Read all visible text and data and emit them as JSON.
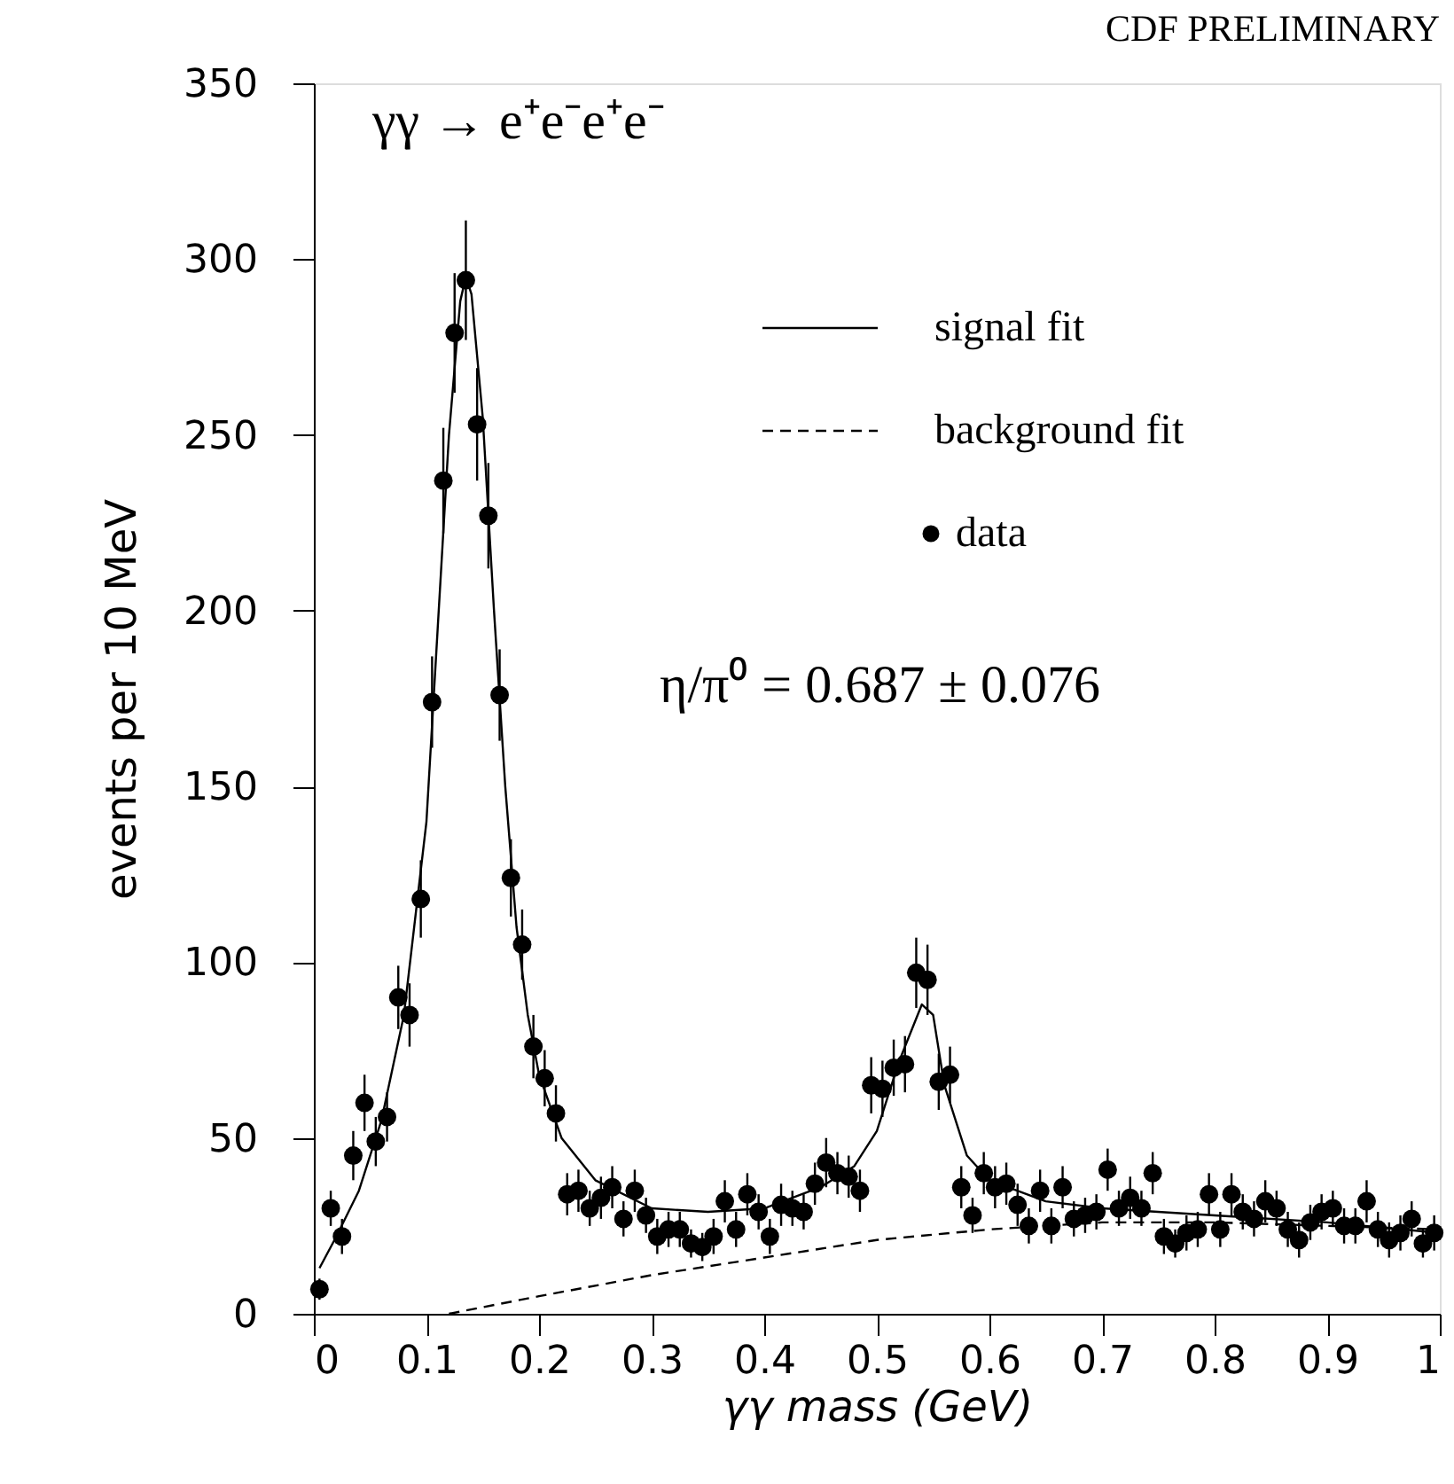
{
  "chart_data": {
    "type": "scatter",
    "xlabel": "γγ mass (GeV)",
    "ylabel": "events per 10 MeV",
    "annotations": [
      "γγ → e⁺e⁻e⁺e⁻",
      "η/π⁰ = 0.687 ± 0.076",
      "CDF PRELIMINARY"
    ],
    "xlim": [
      0,
      1
    ],
    "xticks": [
      0,
      0.1,
      0.2,
      0.3,
      0.4,
      0.5,
      0.6,
      0.7,
      0.8,
      0.9,
      1
    ],
    "ylim": [
      0,
      350
    ],
    "yticks": [
      0,
      50,
      100,
      150,
      200,
      250,
      300,
      350
    ],
    "grid": false,
    "legend": "top right",
    "series": [
      {
        "name": "signal fit",
        "type": "line",
        "line_style": "solid",
        "marker": "none",
        "color": "#000000",
        "x": [
          0.005,
          0.02,
          0.04,
          0.06,
          0.08,
          0.1,
          0.11,
          0.12,
          0.13,
          0.135,
          0.14,
          0.15,
          0.16,
          0.17,
          0.18,
          0.19,
          0.2,
          0.22,
          0.25,
          0.3,
          0.35,
          0.4,
          0.45,
          0.48,
          0.5,
          0.52,
          0.54,
          0.55,
          0.56,
          0.58,
          0.6,
          0.65,
          0.7,
          0.8,
          0.9,
          1.0
        ],
        "values": [
          13,
          22,
          35,
          55,
          85,
          140,
          195,
          250,
          288,
          295,
          290,
          255,
          200,
          150,
          110,
          85,
          68,
          50,
          38,
          30,
          29,
          30,
          36,
          42,
          52,
          72,
          88,
          85,
          65,
          45,
          38,
          32,
          30,
          28,
          26,
          23
        ]
      },
      {
        "name": "background fit",
        "type": "line",
        "line_style": "dashed",
        "marker": "none",
        "color": "#000000",
        "x": [
          0.12,
          0.2,
          0.3,
          0.4,
          0.5,
          0.6,
          0.7,
          0.8,
          0.9,
          1.0
        ],
        "values": [
          0,
          5,
          11,
          16,
          21,
          24,
          26,
          26,
          25,
          24
        ]
      },
      {
        "name": "data",
        "marker": "circle",
        "color": "#000000",
        "x": [
          0.005,
          0.015,
          0.025,
          0.035,
          0.045,
          0.055,
          0.065,
          0.075,
          0.085,
          0.095,
          0.105,
          0.115,
          0.125,
          0.135,
          0.145,
          0.155,
          0.165,
          0.175,
          0.185,
          0.195,
          0.205,
          0.215,
          0.225,
          0.235,
          0.245,
          0.255,
          0.265,
          0.275,
          0.285,
          0.295,
          0.305,
          0.315,
          0.325,
          0.335,
          0.345,
          0.355,
          0.365,
          0.375,
          0.385,
          0.395,
          0.405,
          0.415,
          0.425,
          0.435,
          0.445,
          0.455,
          0.465,
          0.475,
          0.485,
          0.495,
          0.505,
          0.515,
          0.525,
          0.535,
          0.545,
          0.555,
          0.565,
          0.575,
          0.585,
          0.595,
          0.605,
          0.615,
          0.625,
          0.635,
          0.645,
          0.655,
          0.665,
          0.675,
          0.685,
          0.695,
          0.705,
          0.715,
          0.725,
          0.735,
          0.745,
          0.755,
          0.765,
          0.775,
          0.785,
          0.795,
          0.805,
          0.815,
          0.825,
          0.835,
          0.845,
          0.855,
          0.865,
          0.875,
          0.885,
          0.895,
          0.905,
          0.915,
          0.925,
          0.935,
          0.945,
          0.955,
          0.965,
          0.975,
          0.985,
          0.995
        ],
        "values": [
          7,
          30,
          22,
          45,
          60,
          49,
          56,
          90,
          85,
          118,
          174,
          237,
          279,
          294,
          253,
          227,
          176,
          124,
          105,
          76,
          67,
          57,
          34,
          35,
          30,
          33,
          36,
          27,
          35,
          28,
          22,
          24,
          24,
          20,
          19,
          22,
          32,
          24,
          34,
          29,
          22,
          31,
          30,
          29,
          37,
          43,
          40,
          39,
          35,
          65,
          64,
          70,
          71,
          97,
          95,
          66,
          68,
          36,
          28,
          40,
          36,
          37,
          31,
          25,
          35,
          25,
          36,
          27,
          28,
          29,
          41,
          30,
          33,
          30,
          40,
          22,
          20,
          23,
          24,
          34,
          24,
          34,
          29,
          27,
          32,
          30,
          24,
          21,
          26,
          29,
          30,
          25,
          25,
          32,
          24,
          21,
          23,
          27,
          20,
          23
        ],
        "errors": [
          3,
          5,
          5,
          7,
          8,
          7,
          7,
          9,
          9,
          11,
          13,
          15,
          17,
          17,
          16,
          15,
          13,
          11,
          10,
          9,
          8,
          8,
          6,
          6,
          5,
          6,
          6,
          5,
          6,
          5,
          5,
          5,
          5,
          4,
          4,
          5,
          6,
          5,
          6,
          5,
          5,
          6,
          5,
          5,
          6,
          7,
          6,
          6,
          6,
          8,
          8,
          8,
          8,
          10,
          10,
          8,
          8,
          6,
          5,
          6,
          6,
          6,
          6,
          5,
          6,
          5,
          6,
          5,
          5,
          5,
          6,
          5,
          6,
          5,
          6,
          5,
          4,
          5,
          5,
          6,
          5,
          6,
          5,
          5,
          6,
          5,
          5,
          5,
          5,
          5,
          5,
          5,
          5,
          6,
          5,
          5,
          5,
          5,
          4,
          5
        ]
      }
    ]
  }
}
